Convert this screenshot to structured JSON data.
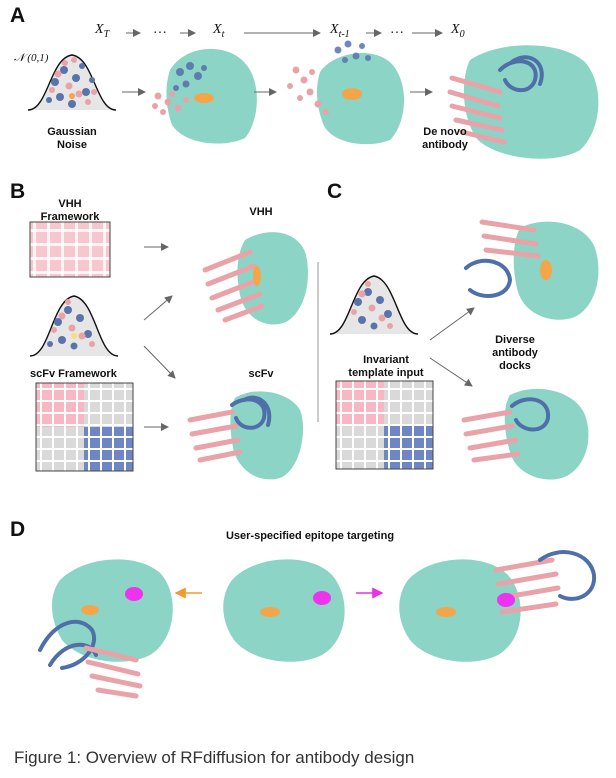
{
  "panels": {
    "a": "A",
    "b": "B",
    "c": "C",
    "d": "D"
  },
  "panel_a": {
    "steps": [
      "X",
      "T",
      "…",
      "X",
      "t",
      "X",
      "t-1",
      "…",
      "X",
      "0"
    ],
    "normal": "𝒩 (0,1)",
    "gaussian_noise": [
      "Gaussian",
      "Noise"
    ],
    "de_novo": [
      "De novo",
      "antibody"
    ]
  },
  "panel_b": {
    "vhh_framework": [
      "VHH",
      "Framework"
    ],
    "vhh": "VHH",
    "scfv_framework": "scFv Framework",
    "scfv": "scFv"
  },
  "panel_c": {
    "invariant": [
      "Invariant",
      "template input"
    ],
    "diverse": [
      "Diverse",
      "antibody",
      "docks"
    ]
  },
  "panel_d": {
    "title": "User-specified epitope targeting"
  },
  "colors": {
    "target": "#7fcfc0",
    "antibody_pink": "#e9a3a8",
    "antibody_blue": "#4f6fa8",
    "epitope_orange": "#f4a548",
    "epitope_magenta": "#ee33ee"
  },
  "caption": "Figure 1: Overview of RFdiffusion for antibody design"
}
